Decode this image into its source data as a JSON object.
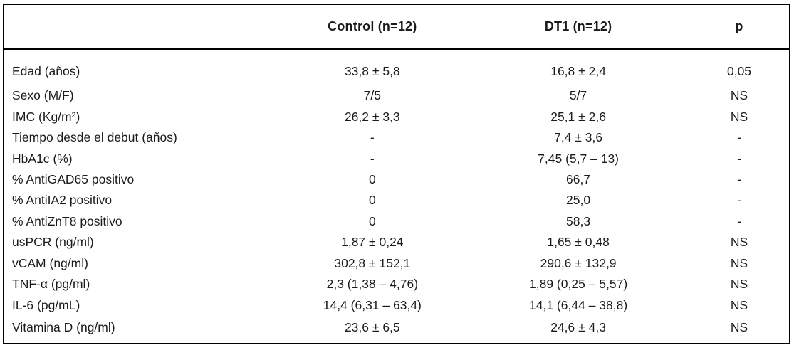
{
  "figure": {
    "columns": {
      "label": "",
      "control": "Control (n=12)",
      "dt1": "DT1 (n=12)",
      "p": "p"
    },
    "rows": [
      {
        "label": "Edad (años)",
        "control": "33,8 ± 5,8",
        "dt1": "16,8 ± 2,4",
        "p": "0,05"
      },
      {
        "label": "Sexo (M/F)",
        "control": "7/5",
        "dt1": "5/7",
        "p": "NS"
      },
      {
        "label": "IMC (Kg/m²)",
        "control": "26,2 ± 3,3",
        "dt1": "25,1 ± 2,6",
        "p": "NS"
      },
      {
        "label": "Tiempo desde el debut (años)",
        "control": "-",
        "dt1": "7,4 ± 3,6",
        "p": "-"
      },
      {
        "label": "HbA1c (%)",
        "control": "-",
        "dt1": "7,45 (5,7 – 13)",
        "p": "-"
      },
      {
        "label": "% AntiGAD65 positivo",
        "control": "0",
        "dt1": "66,7",
        "p": "-"
      },
      {
        "label": "% AntiIA2 positivo",
        "control": "0",
        "dt1": "25,0",
        "p": "-"
      },
      {
        "label": "% AntiZnT8 positivo",
        "control": "0",
        "dt1": "58,3",
        "p": "-"
      },
      {
        "label": "usPCR (ng/ml)",
        "control": "1,87 ± 0,24",
        "dt1": "1,65 ± 0,48",
        "p": "NS"
      },
      {
        "label": "vCAM (ng/ml)",
        "control": "302,8 ± 152,1",
        "dt1": "290,6 ± 132,9",
        "p": "NS"
      },
      {
        "label": "TNF-α (pg/ml)",
        "control": "2,3 (1,38 – 4,76)",
        "dt1": "1,89 (0,25 – 5,57)",
        "p": "NS"
      },
      {
        "label": "IL-6 (pg/mL)",
        "control": "14,4 (6,31 – 63,4)",
        "dt1": "14,1 (6,44 – 38,8)",
        "p": "NS"
      },
      {
        "label": "Vitamina D (ng/ml)",
        "control": "23,6 ± 6,5",
        "dt1": "24,6 ± 4,3",
        "p": "NS"
      }
    ],
    "colors": {
      "text": "#1b1b1d",
      "border": "#000000",
      "background": "#ffffff"
    }
  }
}
